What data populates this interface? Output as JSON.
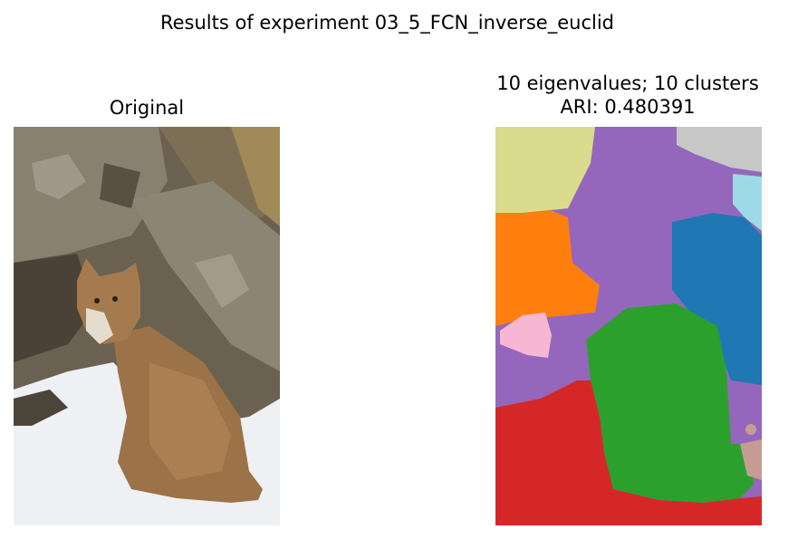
{
  "figure": {
    "suptitle": "Results of experiment 03_5_FCN_inverse_euclid"
  },
  "left_panel": {
    "title": "Original",
    "image_description": "bobcat sitting on snow in front of lichen-covered rocks"
  },
  "right_panel": {
    "title_line1": "10 eigenvalues; 10 clusters",
    "title_line2": "ARI: 0.480391",
    "cluster_colors": {
      "purple": "#9467bd",
      "olive": "#dbdb8d",
      "gray": "#c7c7c7",
      "light_cyan": "#9edae5",
      "blue": "#1f77b4",
      "orange": "#ff7f0e",
      "pink": "#f7b6d2",
      "green": "#2ca02c",
      "red": "#d62728",
      "tan": "#c49c94"
    }
  }
}
